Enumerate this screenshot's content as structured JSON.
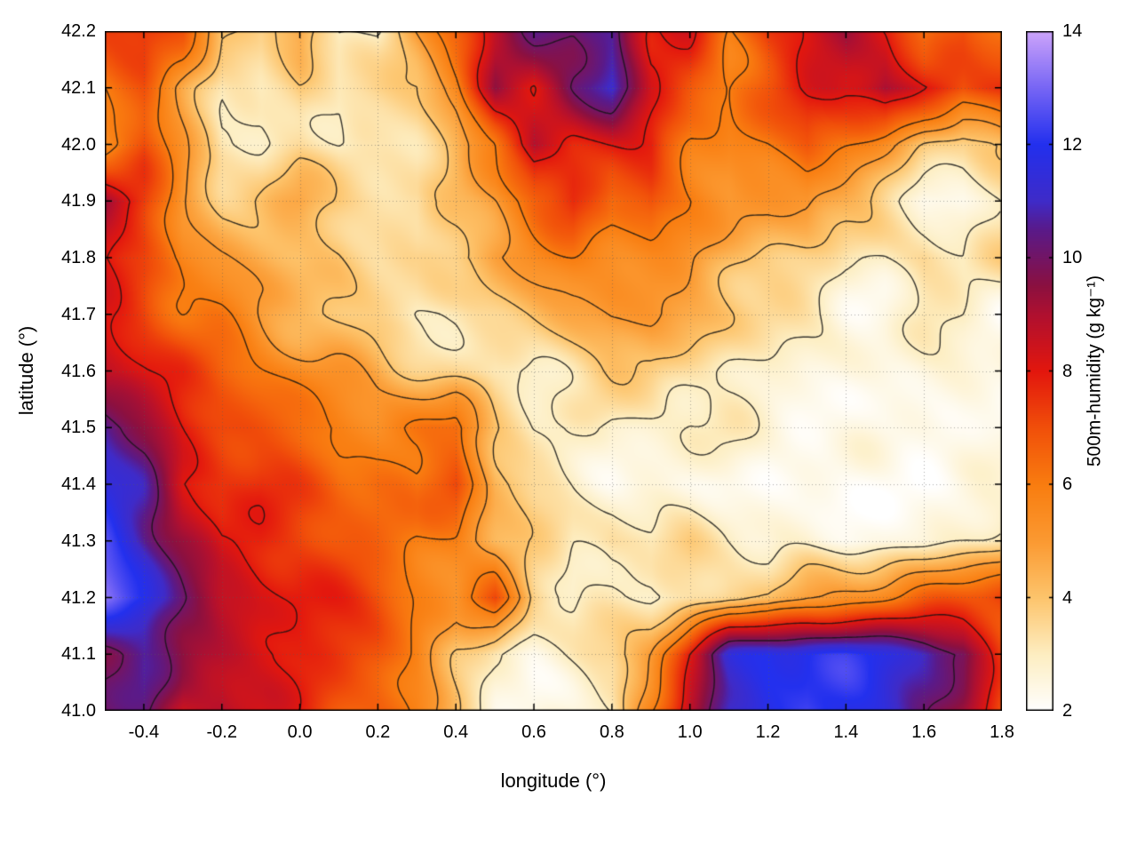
{
  "chart_data": {
    "type": "heatmap",
    "xlabel": "longitude (°)",
    "ylabel": "latitude (°)",
    "colorbar_label": "500m-humidity (g kg⁻¹)",
    "xlim": [
      -0.5,
      1.8
    ],
    "ylim": [
      41.0,
      42.2
    ],
    "clim": [
      2,
      14
    ],
    "x_ticks": [
      -0.4,
      -0.2,
      0.0,
      0.2,
      0.4,
      0.6,
      0.8,
      1.0,
      1.2,
      1.4,
      1.6,
      1.8
    ],
    "y_ticks": [
      41.0,
      41.1,
      41.2,
      41.3,
      41.4,
      41.5,
      41.6,
      41.7,
      41.8,
      41.9,
      42.0,
      42.1,
      42.2
    ],
    "cb_ticks": [
      2,
      4,
      6,
      8,
      10,
      12,
      14
    ],
    "grid_layout": {
      "cols": "longitude -0.5 to 1.8 step 0.1",
      "rows": "latitude 42.2 down to 41.0 step 0.1"
    },
    "values": [
      [
        7,
        7.5,
        7,
        4,
        3.5,
        5,
        3,
        3,
        5,
        7,
        9,
        10.5,
        10,
        11,
        8,
        8,
        6,
        7.5,
        8,
        9,
        8,
        6,
        7,
        6
      ],
      [
        6,
        7,
        5,
        3,
        3,
        4,
        3,
        3.5,
        4,
        5.5,
        9,
        8,
        10,
        11,
        8,
        7,
        6,
        7,
        8,
        8.5,
        9.5,
        8,
        7,
        8
      ],
      [
        5.5,
        7,
        5,
        3,
        3,
        3.5,
        3,
        3,
        3.5,
        4.5,
        6,
        9,
        8,
        8,
        8,
        6,
        5.5,
        6,
        7,
        6,
        5,
        4,
        3.5,
        4
      ],
      [
        9.5,
        7.5,
        5,
        4,
        4,
        4.5,
        4,
        3.5,
        3,
        4,
        5,
        6.5,
        7.5,
        6,
        7,
        6,
        5,
        5,
        5.5,
        4.5,
        3.5,
        2.5,
        2.5,
        3
      ],
      [
        8,
        7,
        5.5,
        5,
        4.5,
        4,
        4,
        3.5,
        3.5,
        4,
        5,
        5.5,
        6,
        6,
        5.5,
        5,
        4.5,
        4,
        3.5,
        3,
        3,
        3.5,
        3,
        3.5
      ],
      [
        8,
        7.5,
        6.5,
        6,
        5,
        4.5,
        4,
        3.5,
        3,
        3,
        3.5,
        4,
        4.5,
        5,
        5,
        4.5,
        4,
        3.5,
        3,
        2.5,
        2.5,
        3,
        3,
        2.5
      ],
      [
        8.5,
        8,
        7.5,
        6.5,
        6,
        5.5,
        5,
        4.5,
        4,
        3.5,
        3,
        3,
        3.5,
        4,
        4,
        3.5,
        3,
        2.8,
        2.5,
        2.5,
        2.5,
        2.5,
        2.5,
        2.5
      ],
      [
        11,
        9.5,
        8,
        7.5,
        7,
        6.5,
        6,
        5.5,
        6,
        6.5,
        4,
        3,
        2.8,
        2.5,
        2.8,
        3,
        2.8,
        2.5,
        2.5,
        2.2,
        2.2,
        2.5,
        2.5,
        2.2
      ],
      [
        11.5,
        10.5,
        8,
        7.5,
        7.5,
        7,
        6.5,
        6.5,
        6,
        7.2,
        4.5,
        3.5,
        3,
        2.5,
        2.5,
        2.5,
        2.5,
        2.3,
        2.3,
        2.2,
        2.2,
        2.2,
        2.3,
        2.3
      ],
      [
        12.5,
        11,
        9.5,
        8,
        8,
        7.5,
        7,
        6.5,
        6,
        6,
        4.5,
        3.5,
        3,
        3.5,
        3,
        3.5,
        3,
        2.5,
        2.5,
        2.3,
        2.3,
        2.5,
        3,
        3.5
      ],
      [
        13,
        12,
        10,
        8.5,
        8,
        8,
        7.5,
        7,
        6,
        5,
        7,
        4,
        3,
        3,
        3,
        3.5,
        4,
        4,
        5,
        5.5,
        6,
        6.5,
        7,
        7.5
      ],
      [
        10,
        10.5,
        9.5,
        9,
        8.5,
        8,
        7.5,
        7,
        6,
        4,
        3,
        2.5,
        3,
        3.5,
        5,
        8,
        11,
        12,
        12,
        12,
        11.5,
        11,
        10,
        7
      ],
      [
        10,
        10,
        8.5,
        9,
        8,
        7.5,
        7,
        6.5,
        5.5,
        4,
        2.5,
        2.3,
        2.5,
        3,
        6,
        9,
        11,
        12,
        12.5,
        12,
        11.5,
        10.5,
        9,
        7
      ]
    ],
    "colormap": [
      {
        "v": 2,
        "c": "#ffffff"
      },
      {
        "v": 3,
        "c": "#fdeec2"
      },
      {
        "v": 4,
        "c": "#fdc56d"
      },
      {
        "v": 5,
        "c": "#fb9a32"
      },
      {
        "v": 6,
        "c": "#f97d10"
      },
      {
        "v": 7,
        "c": "#f1500a"
      },
      {
        "v": 8,
        "c": "#e3170e"
      },
      {
        "v": 9,
        "c": "#b01030"
      },
      {
        "v": 9.5,
        "c": "#8c1040"
      },
      {
        "v": 10.5,
        "c": "#5a1a8a"
      },
      {
        "v": 11,
        "c": "#3f2bc8"
      },
      {
        "v": 12,
        "c": "#2330ee"
      },
      {
        "v": 13,
        "c": "#7766f5"
      },
      {
        "v": 14,
        "c": "#cda4fb"
      }
    ],
    "contour_levels": [
      3,
      4,
      5,
      6,
      8,
      10
    ],
    "contour_color": "#141414",
    "grid_on": true,
    "legend_position": "colorbar-right"
  }
}
